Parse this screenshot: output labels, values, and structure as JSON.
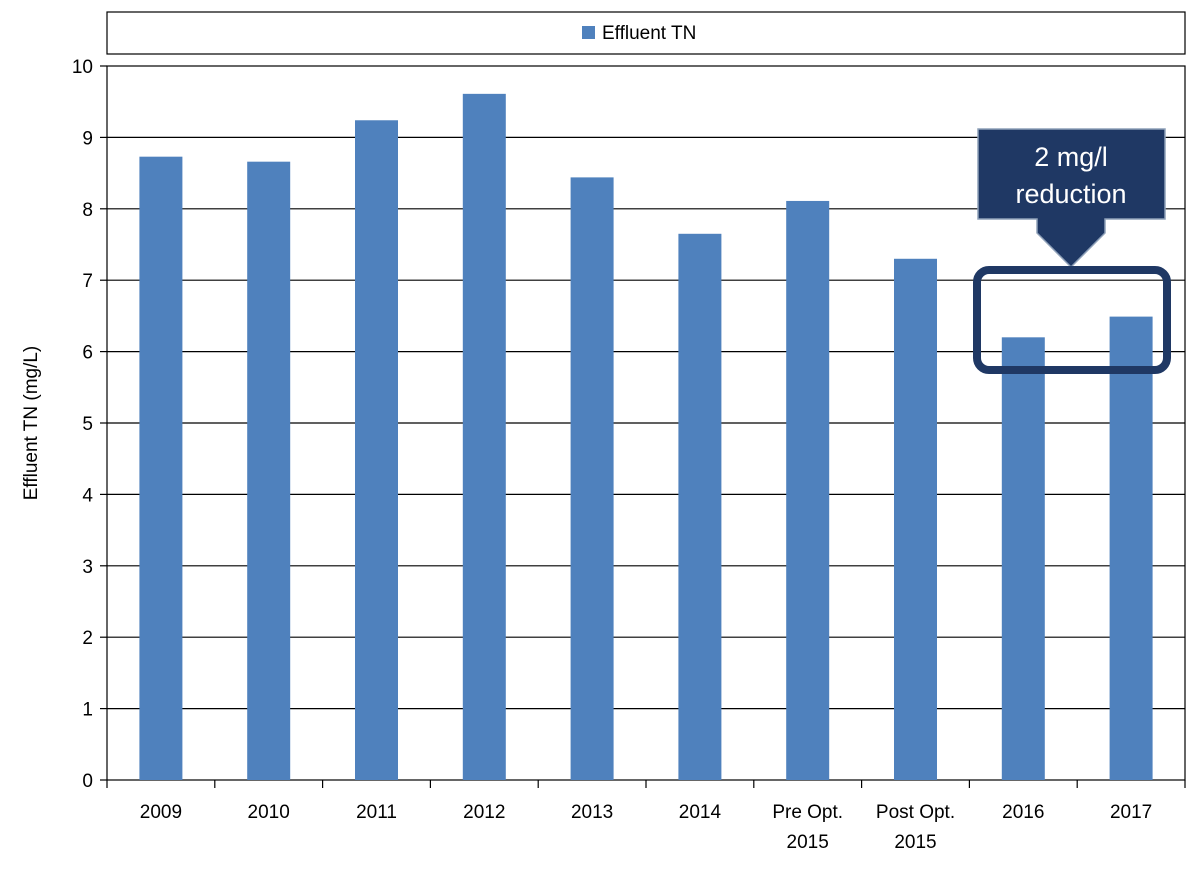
{
  "colors": {
    "bar": "#4f81bd",
    "callout": "#1f3864",
    "axis": "#000000"
  },
  "chart_data": {
    "type": "bar",
    "categories": [
      [
        "2009"
      ],
      [
        "2010"
      ],
      [
        "2011"
      ],
      [
        "2012"
      ],
      [
        "2013"
      ],
      [
        "2014"
      ],
      [
        "Pre Opt.",
        "2015"
      ],
      [
        "Post Opt.",
        "2015"
      ],
      [
        "2016"
      ],
      [
        "2017"
      ]
    ],
    "series": [
      {
        "name": "Effluent TN",
        "values": [
          8.73,
          8.66,
          9.24,
          9.61,
          8.44,
          7.65,
          8.11,
          7.3,
          6.2,
          6.49
        ]
      }
    ],
    "ylabel": "Effluent TN (mg/L)",
    "ylim": [
      0,
      10
    ],
    "yticks": [
      0,
      1,
      2,
      3,
      4,
      5,
      6,
      7,
      8,
      9,
      10
    ],
    "grid": true,
    "legend_position": "top",
    "annotation": {
      "lines": [
        "2 mg/l",
        "reduction"
      ],
      "highlight_categories": [
        "2016",
        "2017"
      ]
    }
  }
}
